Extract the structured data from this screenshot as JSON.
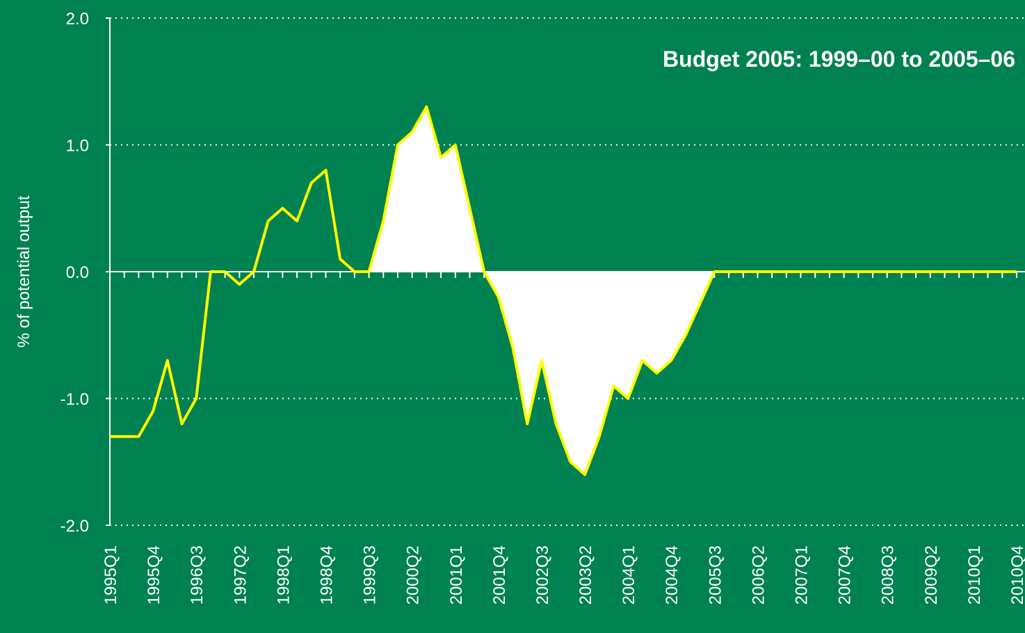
{
  "chart_data": {
    "type": "line",
    "title": "Budget 2005: 1999–00 to 2005–06",
    "y_label": "% of potential output",
    "categories": [
      "1995Q1",
      null,
      null,
      "1995Q4",
      null,
      null,
      "1996Q3",
      null,
      null,
      "1997Q2",
      null,
      null,
      "1998Q1",
      null,
      null,
      "1998Q4",
      null,
      null,
      "1999Q3",
      null,
      null,
      "2000Q2",
      null,
      null,
      "2001Q1",
      null,
      null,
      "2001Q4",
      null,
      null,
      "2002Q3",
      null,
      null,
      "2003Q2",
      null,
      null,
      "2004Q1",
      null,
      null,
      "2004Q4",
      null,
      null,
      "2005Q3",
      null,
      null,
      "2006Q2",
      null,
      null,
      "2007Q1",
      null,
      null,
      "2007Q4",
      null,
      null,
      "2008Q3",
      null,
      null,
      "2009Q2",
      null,
      null,
      "2010Q1",
      null,
      null,
      "2010Q4"
    ],
    "series": [
      {
        "kind": "area",
        "color": "#ffffff",
        "values": [
          null,
          null,
          null,
          null,
          null,
          null,
          null,
          null,
          null,
          null,
          null,
          null,
          null,
          null,
          null,
          null,
          null,
          null,
          0.0,
          0.4,
          1.0,
          1.1,
          1.3,
          0.9,
          1.0,
          0.5,
          0.0,
          -0.2,
          -0.6,
          -1.2,
          -0.7,
          -1.2,
          -1.5,
          -1.6,
          -1.3,
          -0.9,
          -1.0,
          -0.7,
          -0.8,
          -0.7,
          -0.5,
          -0.25,
          0.0,
          null,
          null,
          null,
          null,
          null,
          null,
          null,
          null,
          null,
          null,
          null,
          null,
          null,
          null,
          null,
          null,
          null,
          null,
          null,
          null,
          null
        ]
      },
      {
        "kind": "line",
        "color": "#ffff00",
        "values": [
          -1.3,
          -1.3,
          -1.3,
          -1.1,
          -0.7,
          -1.2,
          -1.0,
          0.0,
          0.0,
          -0.1,
          0.0,
          0.4,
          0.5,
          0.4,
          0.7,
          0.8,
          0.1,
          0.0,
          0.0,
          0.4,
          1.0,
          1.1,
          1.3,
          0.9,
          1.0,
          0.5,
          0.0,
          -0.2,
          -0.6,
          -1.2,
          -0.7,
          -1.2,
          -1.5,
          -1.6,
          -1.3,
          -0.9,
          -1.0,
          -0.7,
          -0.8,
          -0.7,
          -0.5,
          -0.25,
          0.0,
          0.0,
          0.0,
          0.0,
          0.0,
          0.0,
          0.0,
          0.0,
          0.0,
          0.0,
          0.0,
          0.0,
          0.0,
          0.0,
          0.0,
          0.0,
          0.0,
          0.0,
          0.0,
          0.0,
          0.0,
          0.0
        ]
      }
    ],
    "ylim": [
      -2,
      2
    ],
    "yticks": [
      {
        "value": -2,
        "label": "-2.0"
      },
      {
        "value": -1,
        "label": "-1.0"
      },
      {
        "value": 0,
        "label": "0.0"
      },
      {
        "value": 1,
        "label": "1.0"
      },
      {
        "value": 2,
        "label": "2.0"
      }
    ],
    "grid": true,
    "background": "#008151"
  }
}
